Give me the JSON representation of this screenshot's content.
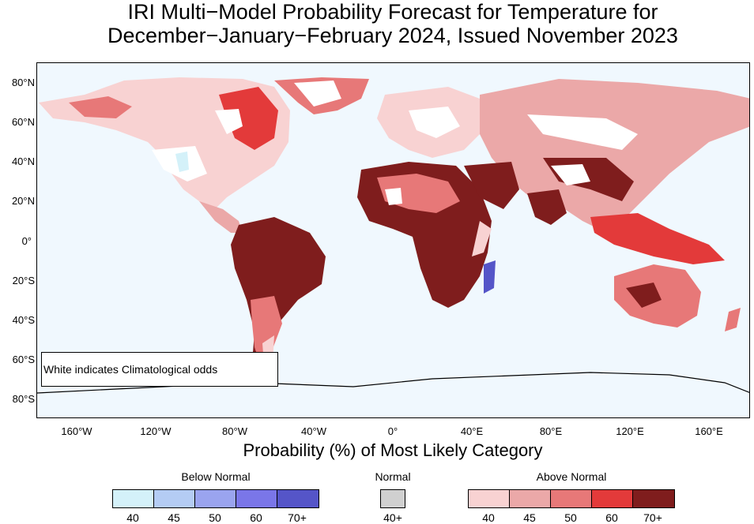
{
  "title": {
    "line1": "IRI Multi−Model Probability Forecast for Temperature for",
    "line2": "December−January−February 2024, Issued November 2023"
  },
  "axes": {
    "lat_labels": [
      "80°N",
      "60°N",
      "40°N",
      "20°N",
      "0°",
      "20°S",
      "40°S",
      "60°S",
      "80°S"
    ],
    "lon_labels": [
      "160°W",
      "120°W",
      "80°W",
      "40°W",
      "0°",
      "40°E",
      "80°E",
      "120°E",
      "160°E"
    ],
    "x_title": "Probability (%) of Most Likely Category"
  },
  "note": "White indicates Climatological odds",
  "legend": {
    "below": {
      "label": "Below Normal",
      "ticks": [
        "40",
        "45",
        "50",
        "60",
        "70+"
      ],
      "colors": [
        "#d4f1f9",
        "#b4ccf4",
        "#9aa4ef",
        "#7a76e8",
        "#5555c8"
      ]
    },
    "normal": {
      "label": "Normal",
      "ticks": [
        "40+"
      ],
      "colors": [
        "#d0d0d0"
      ]
    },
    "above": {
      "label": "Above Normal",
      "ticks": [
        "40",
        "45",
        "50",
        "60",
        "70+"
      ],
      "colors": [
        "#f8d2d2",
        "#eba8a8",
        "#e77878",
        "#e33a3a",
        "#7f1d1d"
      ]
    }
  },
  "colors": {
    "ocean": "#f0f8fe",
    "land_white": "#ffffff"
  }
}
